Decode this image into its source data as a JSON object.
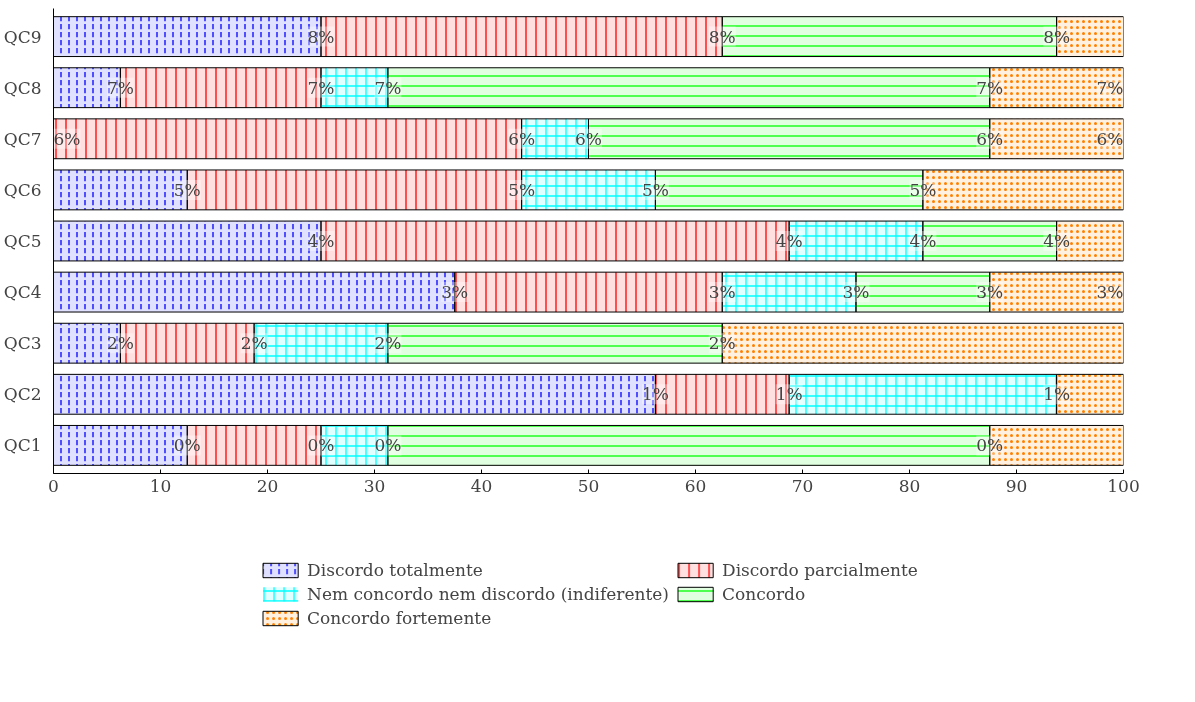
{
  "chart_data": {
    "type": "bar",
    "orientation": "horizontal",
    "stacked": true,
    "categories": [
      "QC9",
      "QC8",
      "QC7",
      "QC6",
      "QC5",
      "QC4",
      "QC3",
      "QC2",
      "QC1"
    ],
    "series": [
      {
        "name": "Discordo totalmente",
        "color": "#0000ff",
        "values": [
          25,
          6.25,
          0,
          12.5,
          25,
          37.5,
          6.25,
          56.25,
          12.5
        ]
      },
      {
        "name": "Discordo parcialmente",
        "color": "#ff0000",
        "values": [
          37.5,
          18.75,
          43.75,
          31.25,
          43.75,
          25,
          12.5,
          12.5,
          12.5
        ]
      },
      {
        "name": "Nem concordo nem discordo (indiferente)",
        "color": "#00ffff",
        "values": [
          0,
          6.25,
          6.25,
          12.5,
          12.5,
          12.5,
          12.5,
          25,
          6.25
        ]
      },
      {
        "name": "Concordo",
        "color": "#00ff00",
        "values": [
          31.25,
          56.25,
          37.5,
          25,
          12.5,
          12.5,
          31.25,
          0,
          56.25
        ]
      },
      {
        "name": "Concordo fortemente",
        "color": "#ff8000",
        "values": [
          6.25,
          12.5,
          12.5,
          18.75,
          6.25,
          12.5,
          37.5,
          6.25,
          12.5
        ]
      }
    ],
    "annotations": [
      {
        "text": "8%",
        "x": 25,
        "y": "QC9"
      },
      {
        "text": "8%",
        "x": 62.5,
        "y": "QC9"
      },
      {
        "text": "8%",
        "x": 93.75,
        "y": "QC9"
      },
      {
        "text": "7%",
        "x": 6.25,
        "y": "QC8"
      },
      {
        "text": "7%",
        "x": 25,
        "y": "QC8"
      },
      {
        "text": "7%",
        "x": 31.25,
        "y": "QC8"
      },
      {
        "text": "7%",
        "x": 87.5,
        "y": "QC8"
      },
      {
        "text": "7%",
        "x": 100,
        "y": "QC8"
      },
      {
        "text": "6%",
        "x": 0,
        "y": "QC7"
      },
      {
        "text": "6%",
        "x": 43.75,
        "y": "QC7"
      },
      {
        "text": "6%",
        "x": 50,
        "y": "QC7"
      },
      {
        "text": "6%",
        "x": 87.5,
        "y": "QC7"
      },
      {
        "text": "6%",
        "x": 100,
        "y": "QC7"
      },
      {
        "text": "5%",
        "x": 12.5,
        "y": "QC6"
      },
      {
        "text": "5%",
        "x": 43.75,
        "y": "QC6"
      },
      {
        "text": "5%",
        "x": 56.25,
        "y": "QC6"
      },
      {
        "text": "5%",
        "x": 81.25,
        "y": "QC6"
      },
      {
        "text": "4%",
        "x": 25,
        "y": "QC5"
      },
      {
        "text": "4%",
        "x": 68.75,
        "y": "QC5"
      },
      {
        "text": "4%",
        "x": 81.25,
        "y": "QC5"
      },
      {
        "text": "4%",
        "x": 93.75,
        "y": "QC5"
      },
      {
        "text": "3%",
        "x": 37.5,
        "y": "QC4"
      },
      {
        "text": "3%",
        "x": 62.5,
        "y": "QC4"
      },
      {
        "text": "3%",
        "x": 75,
        "y": "QC4"
      },
      {
        "text": "3%",
        "x": 87.5,
        "y": "QC4"
      },
      {
        "text": "3%",
        "x": 100,
        "y": "QC4"
      },
      {
        "text": "2%",
        "x": 6.25,
        "y": "QC3"
      },
      {
        "text": "2%",
        "x": 18.75,
        "y": "QC3"
      },
      {
        "text": "2%",
        "x": 31.25,
        "y": "QC3"
      },
      {
        "text": "2%",
        "x": 62.5,
        "y": "QC3"
      },
      {
        "text": "1%",
        "x": 56.25,
        "y": "QC2"
      },
      {
        "text": "1%",
        "x": 68.75,
        "y": "QC2"
      },
      {
        "text": "1%",
        "x": 93.75,
        "y": "QC2"
      },
      {
        "text": "0%",
        "x": 12.5,
        "y": "QC1"
      },
      {
        "text": "0%",
        "x": 25,
        "y": "QC1"
      },
      {
        "text": "0%",
        "x": 31.25,
        "y": "QC1"
      },
      {
        "text": "0%",
        "x": 87.5,
        "y": "QC1"
      }
    ],
    "xlim": [
      0,
      100
    ],
    "xticks": [
      0,
      10,
      20,
      30,
      40,
      50,
      60,
      70,
      80,
      90,
      100
    ],
    "grid": false,
    "legend": "bottom"
  }
}
